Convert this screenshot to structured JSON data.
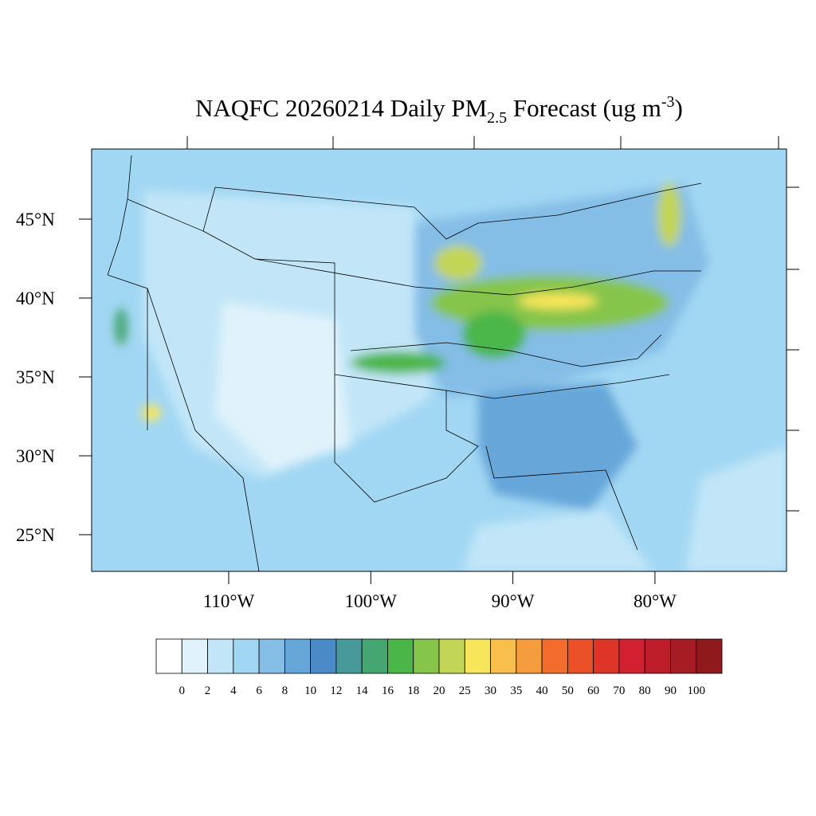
{
  "title_parts": [
    "NAQFC 20260214 Daily PM",
    "2.5",
    " Forecast (ug m",
    "-3",
    ")"
  ],
  "lat_ticks": [
    {
      "value": 45,
      "label": "45°N"
    },
    {
      "value": 40,
      "label": "40°N"
    },
    {
      "value": 35,
      "label": "35°N"
    },
    {
      "value": 30,
      "label": "30°N"
    },
    {
      "value": 25,
      "label": "25°N"
    }
  ],
  "lon_ticks": [
    {
      "value": -110,
      "label": "110°W"
    },
    {
      "value": -100,
      "label": "100°W"
    },
    {
      "value": -90,
      "label": "90°W"
    },
    {
      "value": -80,
      "label": "80°W"
    }
  ],
  "colorbar": {
    "levels": [
      0,
      2,
      4,
      6,
      8,
      10,
      12,
      14,
      16,
      18,
      20,
      25,
      30,
      35,
      40,
      50,
      60,
      70,
      80,
      90,
      100
    ],
    "colors": [
      "#ffffff",
      "#e0f3fb",
      "#c2e6f8",
      "#a2d7f3",
      "#84bde6",
      "#66a6d9",
      "#4a8bc7",
      "#489a9a",
      "#46a671",
      "#4bb648",
      "#86c54c",
      "#c3d556",
      "#f8e65a",
      "#f8c04a",
      "#f59c3e",
      "#f26c2e",
      "#ea5128",
      "#de3528",
      "#d32030",
      "#bc1d28",
      "#a71c22",
      "#8e1a1d"
    ]
  }
}
